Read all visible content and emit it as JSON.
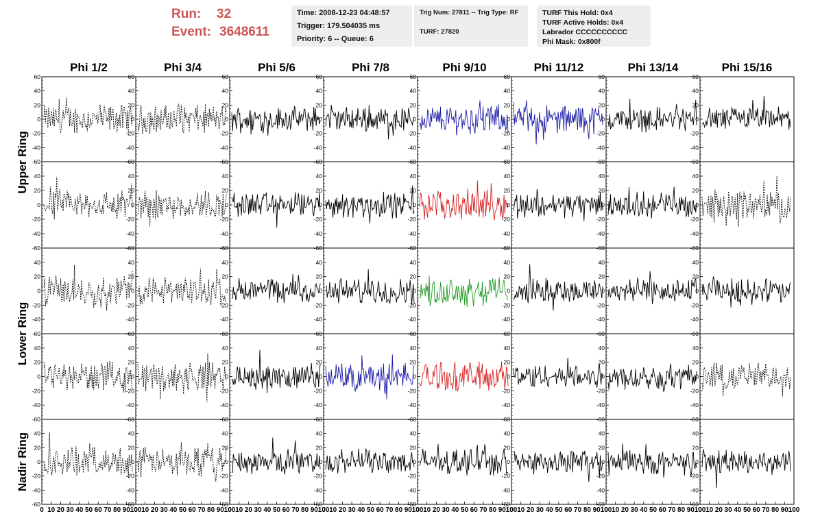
{
  "header": {
    "run_label": "Run:",
    "run_value": "32",
    "event_label": "Event:",
    "event_value": "3648611",
    "time": "Time: 2008-12-23 04:48:57",
    "trigger": "Trigger: 179.504035 ms",
    "priority": "Priority: 6 -- Queue: 6",
    "trig_num": "Trig Num: 27811 -- Trig Type: RF",
    "turf": "TURF: 27820",
    "turf_this_hold": "TURF This Hold: 0x4",
    "turf_active_holds": "TURF Active Holds: 0x4",
    "labrador": "Labrador CCCCCCCCCC",
    "phi_mask": "Phi Mask: 0x800f"
  },
  "chart_data": {
    "type": "line",
    "columns": [
      "Phi 1/2",
      "Phi 3/4",
      "Phi 5/6",
      "Phi 7/8",
      "Phi 9/10",
      "Phi 11/12",
      "Phi 13/14",
      "Phi 15/16"
    ],
    "rows": [
      "Upper Ring",
      "",
      "Lower Ring",
      "",
      "Nadir Ring"
    ],
    "ring_labels": [
      "Upper Ring",
      "Lower Ring",
      "Nadir Ring"
    ],
    "ylim": [
      -60,
      60
    ],
    "xlim": [
      0,
      100
    ],
    "ytick_labels": [
      "60",
      "40",
      "20",
      "0",
      "-20",
      "-40",
      "-60"
    ],
    "ytick_values": [
      60,
      40,
      20,
      0,
      -20,
      -40,
      -60
    ],
    "xtick_labels": [
      "0",
      "10",
      "20",
      "30",
      "40",
      "50",
      "60",
      "70",
      "80",
      "90",
      "100"
    ],
    "trace_colors": {
      "black": "#000000",
      "blue": "#1a1aa6",
      "red": "#d42020",
      "green": "#1f9a1f"
    },
    "panels": [
      [
        "dashed-black",
        "dashed-black",
        "black",
        "black",
        "blue",
        "blue",
        "black",
        "black"
      ],
      [
        "dashed-black",
        "dashed-black",
        "black",
        "black",
        "red",
        "black",
        "black",
        "dashed-black"
      ],
      [
        "dashed-black",
        "dashed-black",
        "black",
        "black",
        "green",
        "black",
        "black",
        "black"
      ],
      [
        "dashed-black",
        "dashed-black",
        "black",
        "blue",
        "red",
        "black",
        "black",
        "dashed-black"
      ],
      [
        "dashed-black",
        "dashed-black",
        "black",
        "black",
        "black",
        "black",
        "black",
        "black"
      ]
    ],
    "grid": false
  }
}
